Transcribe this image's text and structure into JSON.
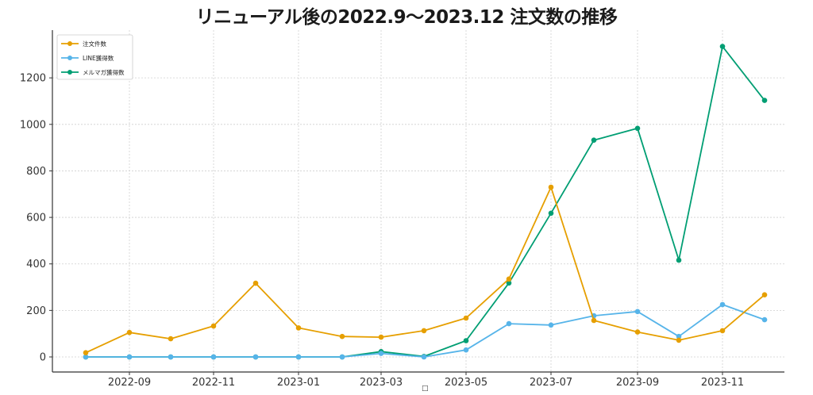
{
  "chart_data": {
    "type": "line",
    "title": "リニューアル後の2022.9〜2023.12 注文数の推移",
    "xlabel": "□",
    "ylabel": "",
    "x": [
      "2022-08",
      "2022-09",
      "2022-10",
      "2022-11",
      "2022-12",
      "2023-01",
      "2023-02",
      "2023-03",
      "2023-04",
      "2023-05",
      "2023-06",
      "2023-07",
      "2023-08",
      "2023-09",
      "2023-10",
      "2023-11",
      "2023-12"
    ],
    "x_tick_labels": [
      "2022-09",
      "2022-11",
      "2023-01",
      "2023-03",
      "2023-05",
      "2023-07",
      "2023-09",
      "2023-11"
    ],
    "y_ticks": [
      0,
      200,
      400,
      600,
      800,
      1000,
      1200
    ],
    "ylim": [
      -70,
      1390
    ],
    "grid": true,
    "legend_position": "upper left",
    "series": [
      {
        "name": "注文件数",
        "color": "#E69F00",
        "values": [
          18,
          105,
          78,
          133,
          317,
          125,
          88,
          85,
          113,
          167,
          335,
          730,
          157,
          107,
          72,
          113,
          267
        ]
      },
      {
        "name": "LINE獲得数",
        "color": "#56B4E9",
        "values": [
          0,
          0,
          0,
          0,
          0,
          0,
          0,
          15,
          0,
          30,
          143,
          137,
          177,
          195,
          88,
          225,
          160
        ]
      },
      {
        "name": "メルマガ獲得数",
        "color": "#009E73",
        "values": [
          0,
          0,
          0,
          0,
          0,
          0,
          0,
          23,
          2,
          70,
          318,
          618,
          932,
          983,
          416,
          1335,
          1103
        ]
      }
    ]
  },
  "legend": {
    "items": [
      {
        "label": "注文件数"
      },
      {
        "label": "LINE獲得数"
      },
      {
        "label": "メルマガ獲得数"
      }
    ]
  }
}
